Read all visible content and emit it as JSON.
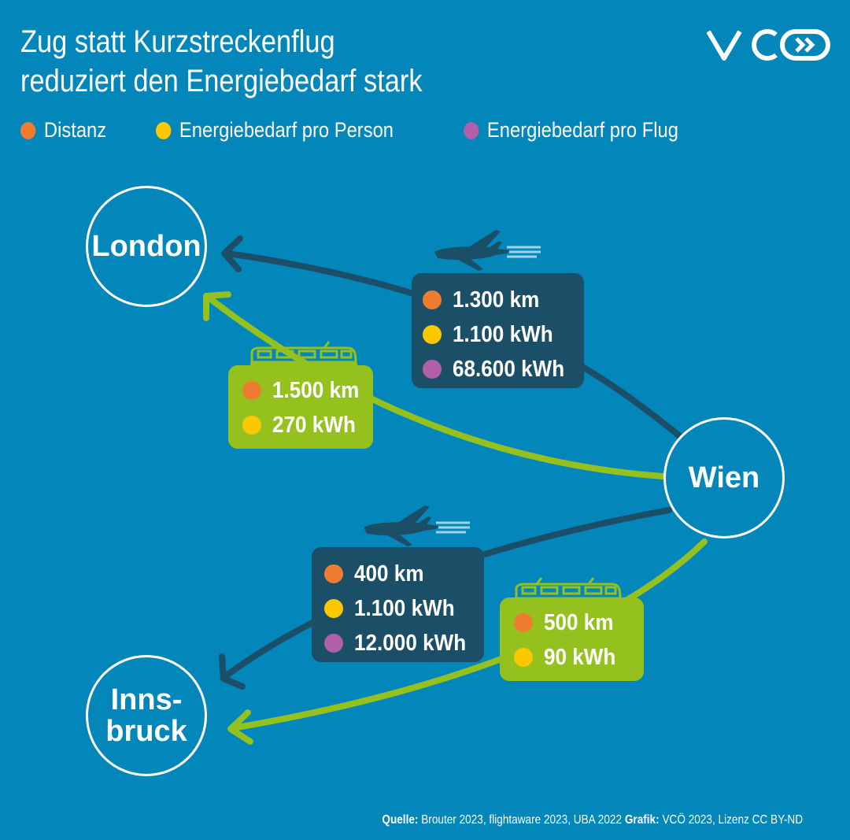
{
  "title": {
    "line1": "Zug statt Kurzstreckenflug",
    "line2": "reduziert den Energiebedarf stark"
  },
  "logo": "VCÖ",
  "colors": {
    "background": "#0386ba",
    "flight": "#1b4f68",
    "train": "#95c11f",
    "distance": "#ef7d30",
    "energy_person": "#fdc800",
    "energy_flight": "#b160a8"
  },
  "legend": [
    {
      "label": "Distanz",
      "color": "#ef7d30"
    },
    {
      "label": "Energiebedarf pro Person",
      "color": "#fdc800"
    },
    {
      "label": "Energiebedarf pro Flug",
      "color": "#b160a8"
    }
  ],
  "cities": {
    "london": "London",
    "wien": "Wien",
    "innsbruck_1": "Inns-",
    "innsbruck_2": "bruck"
  },
  "routes": {
    "london_flight": {
      "icon": "airplane-icon",
      "distance": "1.300 km",
      "energy_person": "1.100 kWh",
      "energy_flight": "68.600 kWh"
    },
    "london_train": {
      "icon": "train-icon",
      "distance": "1.500 km",
      "energy_person": "270 kWh"
    },
    "innsbruck_flight": {
      "icon": "airplane-icon",
      "distance": "400 km",
      "energy_person": "1.100 kWh",
      "energy_flight": "12.000 kWh"
    },
    "innsbruck_train": {
      "icon": "train-icon",
      "distance": "500 km",
      "energy_person": "90 kWh"
    }
  },
  "source": {
    "label1": "Quelle:",
    "text1": " Brouter 2023, flightaware 2023, UBA 2022 ",
    "label2": "Grafik:",
    "text2": " VCÖ 2023, Lizenz CC BY-ND"
  }
}
